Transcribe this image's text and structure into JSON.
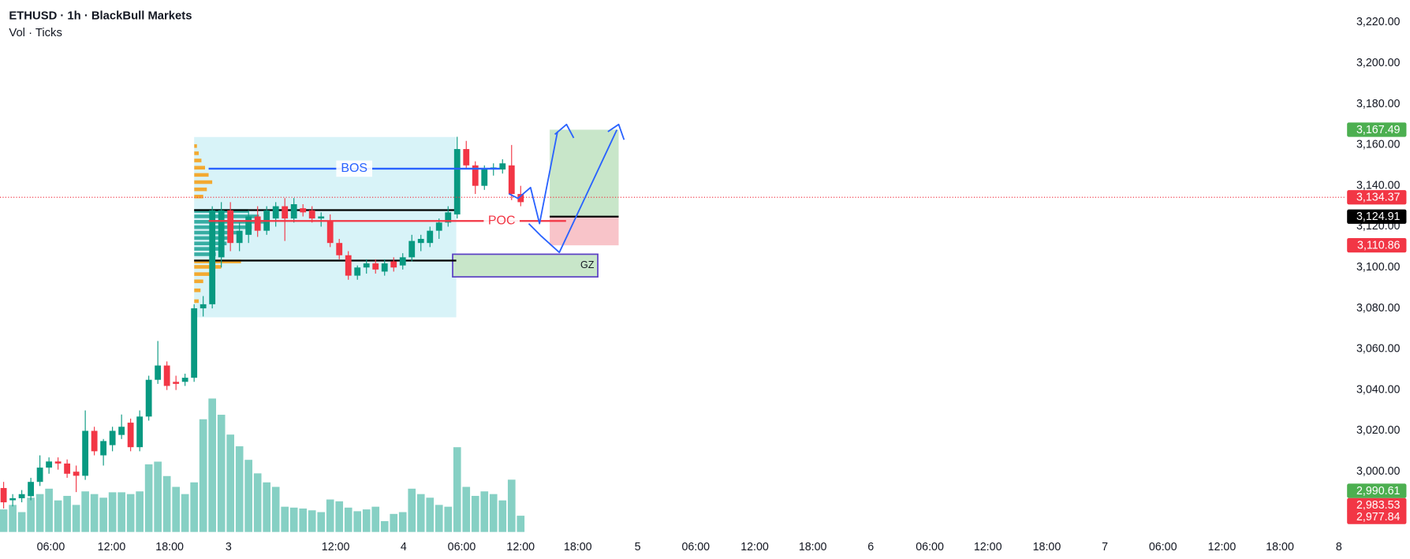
{
  "chart_data": {
    "type": "candlestick",
    "title": "ETHUSD · 1h · BlackBull Markets",
    "subtitle": "Vol · Ticks",
    "x": [
      0,
      1,
      2,
      3,
      4,
      5,
      6,
      7,
      8,
      9,
      10,
      11,
      12,
      13,
      14,
      15,
      16,
      17,
      18,
      19,
      20,
      21,
      22,
      23,
      24,
      25,
      26,
      27,
      28,
      29,
      30,
      31,
      32,
      33,
      34,
      35,
      36,
      37,
      38,
      39,
      40,
      41,
      42,
      43,
      44,
      45,
      46,
      47,
      48,
      49,
      50,
      51,
      52,
      53,
      54,
      55,
      56,
      57
    ],
    "open": [
      2992,
      2986,
      2987,
      2988,
      2995,
      3002,
      3005,
      3004,
      3000,
      2998,
      3020,
      3008,
      3013,
      3018,
      3024,
      3012,
      3027,
      3045,
      3052,
      3044,
      3044,
      3046,
      3080,
      3082,
      3105,
      3128,
      3112,
      3116,
      3125,
      3118,
      3124,
      3130,
      3124,
      3129,
      3128,
      3124,
      3123,
      3112,
      3106,
      3096,
      3100,
      3102,
      3098,
      3103,
      3101,
      3105,
      3112,
      3112,
      3118,
      3122,
      3126,
      3158,
      3150,
      3140,
      3148,
      3148,
      3150,
      3136
    ],
    "high": [
      2995,
      2989,
      2991,
      2997,
      3008,
      3007,
      3007,
      3006,
      3003,
      3030,
      3022,
      3016,
      3022,
      3028,
      3026,
      3030,
      3047,
      3064,
      3054,
      3047,
      3048,
      3082,
      3086,
      3130,
      3132,
      3132,
      3122,
      3128,
      3130,
      3130,
      3132,
      3134,
      3134,
      3131,
      3130,
      3127,
      3126,
      3114,
      3108,
      3101,
      3104,
      3104,
      3104,
      3105,
      3107,
      3116,
      3116,
      3120,
      3124,
      3130,
      3164,
      3162,
      3152,
      3150,
      3151,
      3153,
      3160,
      3140
    ],
    "low": [
      2982,
      2983,
      2985,
      2986,
      2993,
      2999,
      3001,
      2997,
      2990,
      2996,
      3008,
      3003,
      3010,
      3016,
      3010,
      3010,
      3025,
      3043,
      3040,
      3040,
      3042,
      3044,
      3076,
      3080,
      3100,
      3108,
      3108,
      3112,
      3115,
      3116,
      3120,
      3113,
      3122,
      3125,
      3122,
      3120,
      3110,
      3104,
      3094,
      3094,
      3097,
      3097,
      3096,
      3098,
      3099,
      3103,
      3108,
      3110,
      3114,
      3120,
      3124,
      3148,
      3136,
      3138,
      3145,
      3146,
      3133,
      3130
    ],
    "close": [
      2985,
      2987,
      2989,
      2995,
      3002,
      3005,
      3004,
      2999,
      2998,
      3020,
      3010,
      3015,
      3020,
      3022,
      3012,
      3027,
      3045,
      3052,
      3042,
      3043,
      3046,
      3080,
      3082,
      3128,
      3128,
      3112,
      3118,
      3125,
      3118,
      3128,
      3130,
      3124,
      3131,
      3127,
      3124,
      3125,
      3112,
      3106,
      3096,
      3100,
      3102,
      3099,
      3102,
      3100,
      3105,
      3113,
      3114,
      3118,
      3122,
      3127,
      3158,
      3150,
      3140,
      3148,
      3149,
      3151,
      3136,
      3132
    ],
    "volume": [
      25,
      30,
      22,
      38,
      42,
      48,
      35,
      40,
      30,
      45,
      42,
      38,
      44,
      44,
      42,
      45,
      75,
      78,
      62,
      50,
      42,
      55,
      125,
      148,
      130,
      108,
      95,
      80,
      65,
      55,
      50,
      28,
      27,
      26,
      24,
      22,
      36,
      34,
      27,
      23,
      25,
      28,
      12,
      20,
      22,
      48,
      42,
      38,
      30,
      28,
      94,
      50,
      40,
      45,
      42,
      35,
      58,
      18
    ],
    "up_color": "#089981",
    "down_color": "#f23645",
    "volume_color": "#86d0c4",
    "xlim": [
      -0.4,
      148.0
    ],
    "ylim": [
      2969.6,
      3231.0
    ],
    "grid": false,
    "xticks": [
      {
        "value": 5.2,
        "label": "06:00"
      },
      {
        "value": 11.9,
        "label": "12:00"
      },
      {
        "value": 18.3,
        "label": "18:00"
      },
      {
        "value": 24.8,
        "label": "3"
      },
      {
        "value": 36.6,
        "label": "12:00"
      },
      {
        "value": 44.1,
        "label": "4"
      },
      {
        "value": 50.5,
        "label": "06:00"
      },
      {
        "value": 57.0,
        "label": "12:00"
      },
      {
        "value": 63.3,
        "label": "18:00"
      },
      {
        "value": 69.9,
        "label": "5"
      },
      {
        "value": 76.3,
        "label": "06:00"
      },
      {
        "value": 82.8,
        "label": "12:00"
      },
      {
        "value": 89.2,
        "label": "18:00"
      },
      {
        "value": 95.6,
        "label": "6"
      },
      {
        "value": 102.1,
        "label": "06:00"
      },
      {
        "value": 108.5,
        "label": "12:00"
      },
      {
        "value": 115.0,
        "label": "18:00"
      },
      {
        "value": 121.4,
        "label": "7"
      },
      {
        "value": 127.8,
        "label": "06:00"
      },
      {
        "value": 134.3,
        "label": "12:00"
      },
      {
        "value": 140.7,
        "label": "18:00"
      },
      {
        "value": 147.2,
        "label": "8"
      }
    ],
    "yticks": [
      {
        "value": 3220,
        "label": "3,220.00"
      },
      {
        "value": 3200,
        "label": "3,200.00"
      },
      {
        "value": 3180,
        "label": "3,180.00"
      },
      {
        "value": 3160,
        "label": "3,160.00"
      },
      {
        "value": 3140,
        "label": "3,140.00"
      },
      {
        "value": 3120,
        "label": "3,120.00"
      },
      {
        "value": 3100,
        "label": "3,100.00"
      },
      {
        "value": 3080,
        "label": "3,080.00"
      },
      {
        "value": 3060,
        "label": "3,060.00"
      },
      {
        "value": 3040,
        "label": "3,040.00"
      },
      {
        "value": 3020,
        "label": "3,020.00"
      },
      {
        "value": 3000,
        "label": "3,000.00"
      }
    ],
    "current_price": {
      "value": 3134.37,
      "color": "#f23645"
    },
    "price_labels": [
      {
        "value": 3167.49,
        "label": "3,167.49",
        "color": "#4caf50"
      },
      {
        "value": 3134.37,
        "label": "3,134.37",
        "color": "#f23645"
      },
      {
        "value": 3124.91,
        "label": "3,124.91",
        "color": "#000000"
      },
      {
        "value": 3110.86,
        "label": "3,110.86",
        "color": "#f23645"
      },
      {
        "value": 2990.61,
        "label": "2,990.61",
        "color": "#4caf50"
      },
      {
        "value": 2983.53,
        "label": "2,983.53",
        "color": "#f23645"
      },
      {
        "value": 2977.84,
        "label": "2,977.84",
        "color": "#f23645"
      }
    ],
    "range_box": {
      "x": [
        21.0,
        49.9
      ],
      "price": [
        3075.6,
        3163.9
      ],
      "color": "#d8f3f8"
    },
    "lines": [
      {
        "price": 3128.1,
        "x": [
          21.0,
          49.9
        ],
        "color": "#000000"
      },
      {
        "price": 3103.4,
        "x": [
          21.0,
          49.9
        ],
        "color": "#000000"
      }
    ],
    "levels": [
      {
        "name": "BOS",
        "price": 3148.4,
        "x": [
          22.6,
          54.7
        ],
        "color": "#2962ff"
      },
      {
        "name": "POC",
        "price": 3122.8,
        "x": [
          22.6,
          62.0
        ],
        "color": "#f23645"
      }
    ],
    "zone": {
      "name": "GZ",
      "price": [
        3095.4,
        3106.5
      ],
      "x": [
        49.5,
        65.5
      ],
      "color": "#c8e6c9",
      "border": "#5b3fc4"
    },
    "position": {
      "entry": 3124.91,
      "target": 3167.49,
      "stop": 3110.86,
      "x": [
        60.2,
        67.8
      ],
      "profit_color": "#c8e6c9",
      "loss_color": "#f8c4c9"
    }
  }
}
